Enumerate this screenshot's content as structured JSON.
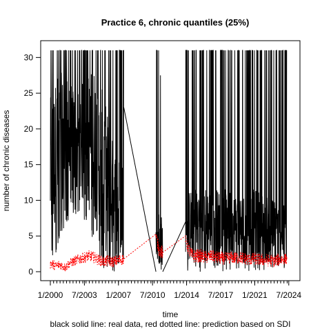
{
  "chart_data": {
    "type": "line",
    "title": "Practice 6, chronic quantiles (25%)",
    "xlabel": "time",
    "ylabel": "number of chronic diseases",
    "caption": "black solid line: real data, red dotted line: prediction based on SDI",
    "xlim": [
      2000.0,
      2024.8
    ],
    "ylim": [
      0,
      31
    ],
    "grid": false,
    "x_ticks": [
      {
        "value": 2000.0,
        "label": "1/2000"
      },
      {
        "value": 2003.5,
        "label": "7/2003"
      },
      {
        "value": 2007.0,
        "label": "1/2007"
      },
      {
        "value": 2010.5,
        "label": "7/2010"
      },
      {
        "value": 2014.0,
        "label": "1/2014"
      },
      {
        "value": 2017.5,
        "label": "7/2017"
      },
      {
        "value": 2021.0,
        "label": "1/2021"
      },
      {
        "value": 2024.5,
        "label": "7/2024"
      }
    ],
    "y_ticks": [
      0,
      5,
      10,
      15,
      20,
      25,
      30
    ],
    "series": [
      {
        "style": "solid",
        "color": "#000000",
        "segments": [
          {
            "x_start": 2000.0,
            "x_end": 2007.55,
            "mid_x": [
              2000.0,
              2000.8,
              2001.5,
              2002.2,
              2003.0,
              2003.8,
              2004.6,
              2005.0,
              2005.5,
              2006.0,
              2006.5,
              2007.0,
              2007.55
            ],
            "mid_y": [
              14,
              17,
              18,
              18,
              18,
              18,
              18,
              15,
              14,
              12,
              10,
              9,
              9
            ],
            "low_y": [
              1,
              3,
              6,
              8,
              8,
              6,
              4,
              1,
              0,
              0,
              0,
              0,
              0
            ],
            "high_y": [
              31,
              31,
              31,
              31,
              31,
              31,
              31,
              31,
              31,
              31,
              31,
              31,
              31
            ]
          },
          {
            "x_start": 2010.85,
            "x_end": 2011.55,
            "mid_x": [
              2010.85,
              2011.2,
              2011.55
            ],
            "mid_y": [
              4,
              5,
              4
            ],
            "low_y": [
              0,
              0,
              0
            ],
            "high_y": [
              31,
              31,
              20
            ]
          },
          {
            "x_start": 2013.9,
            "x_end": 2024.3,
            "mid_x": [
              2013.9,
              2015.0,
              2016.5,
              2018.0,
              2019.5,
              2021.0,
              2022.5,
              2024.3
            ],
            "mid_y": [
              6,
              7,
              6.5,
              6.5,
              6,
              6.5,
              6,
              5
            ],
            "low_y": [
              0,
              0,
              0,
              0,
              0,
              0,
              0,
              0
            ],
            "high_y": [
              31,
              31,
              31,
              31,
              31,
              31,
              31,
              31
            ]
          }
        ],
        "gap_lines": [
          {
            "x": [
              2007.55,
              2010.85
            ],
            "y": [
              23,
              0
            ]
          },
          {
            "x": [
              2011.55,
              2013.9
            ],
            "y": [
              0,
              7
            ]
          }
        ]
      },
      {
        "style": "dotted",
        "color": "#ff0000",
        "x": [
          2000.0,
          2000.5,
          2001.0,
          2001.5,
          2002.0,
          2002.5,
          2003.0,
          2003.5,
          2004.0,
          2004.5,
          2005.0,
          2005.5,
          2006.0,
          2006.5,
          2007.0,
          2007.55,
          2010.85,
          2011.2,
          2011.55,
          2013.9,
          2014.5,
          2015.0,
          2015.5,
          2016.0,
          2016.5,
          2017.0,
          2017.5,
          2018.0,
          2018.5,
          2019.0,
          2019.5,
          2020.0,
          2020.5,
          2021.0,
          2021.5,
          2022.0,
          2022.5,
          2023.0,
          2023.5,
          2024.3
        ],
        "y": [
          1.2,
          0.8,
          1.0,
          0.6,
          1.2,
          1.5,
          1.8,
          2.0,
          2.2,
          2.0,
          1.6,
          1.4,
          1.5,
          1.4,
          1.6,
          1.8,
          5.0,
          3.0,
          2.7,
          4.2,
          2.3,
          2.2,
          2.2,
          2.0,
          2.2,
          2.0,
          1.9,
          1.8,
          2.0,
          1.9,
          2.0,
          1.8,
          1.7,
          1.8,
          1.7,
          1.6,
          1.6,
          1.5,
          1.7,
          1.8
        ],
        "spread": [
          0.8,
          0.7,
          0.7,
          0.6,
          0.7,
          0.7,
          0.8,
          0.8,
          0.8,
          0.8,
          0.8,
          0.8,
          0.8,
          0.8,
          0.8,
          0.8,
          0.8,
          1.0,
          1.0,
          0.9,
          1.0,
          1.0,
          0.9,
          0.9,
          0.9,
          0.9,
          0.9,
          0.9,
          0.9,
          0.9,
          0.9,
          0.9,
          0.9,
          0.9,
          0.9,
          0.9,
          0.9,
          0.9,
          0.9,
          0.8
        ]
      }
    ]
  }
}
